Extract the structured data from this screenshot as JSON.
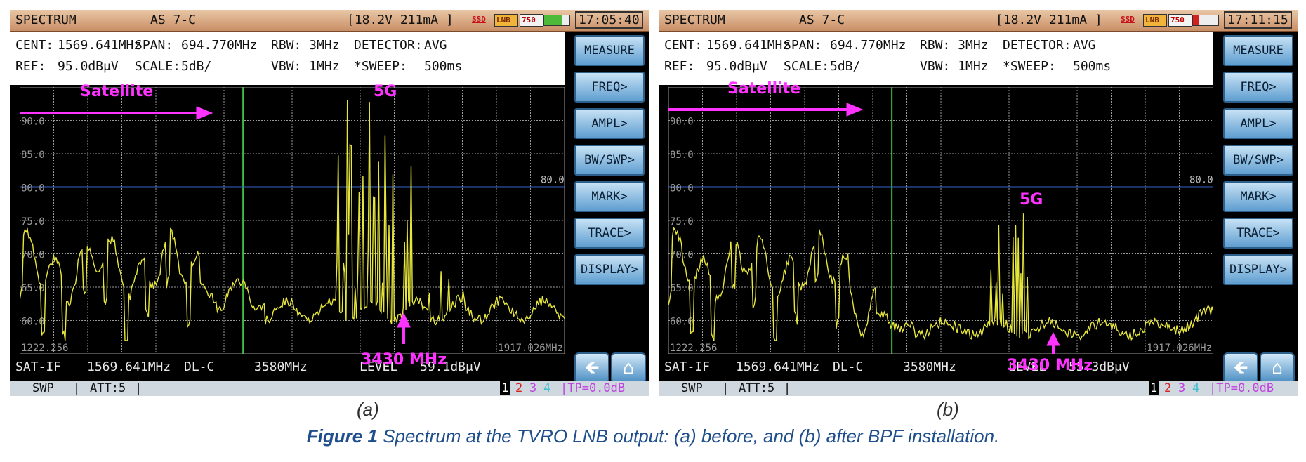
{
  "panels": [
    {
      "header": {
        "title": "SPECTRUM",
        "satellite": "AS 7-C",
        "power": "[18.2V 211mA ]",
        "ssd": "SSD",
        "lnb": "LNB",
        "n750": "750",
        "time": "17:05:40"
      },
      "params": {
        "cent": "CENT:",
        "cent_val": "1569.641MHz",
        "span": "SPAN:",
        "span_val": "694.770MHz",
        "rbw": "RBW: 3MHz",
        "detector": "DETECTOR:",
        "detector_val": "AVG",
        "ref": "REF:",
        "ref_val": "95.0dBμV",
        "scale": "SCALE:",
        "scale_val": "5dB/",
        "vbw": "VBW: 1MHz",
        "sweep": "*SWEEP:",
        "sweep_val": "500ms"
      },
      "y_labels": [
        "90.0",
        "85.0",
        "80.0",
        "75.0",
        "70.0",
        "65.0",
        "60.0"
      ],
      "ref_line_label": "80.0",
      "start_freq": "1222.256",
      "stop_freq": "1917.026MHz",
      "bottom": {
        "mode": "SAT-IF",
        "freq": "1569.641MHz",
        "band": "DL-C",
        "lo": "3580MHz",
        "level": "LEVEL",
        "level_val": "59.1dBμV"
      },
      "status": {
        "swp": "SWP",
        "sep1": "|",
        "att": "ATT:5",
        "sep2": "|",
        "t1": "1",
        "t2": "2",
        "t3": "3",
        "t4": "4",
        "tp": "|TP=0.0dB"
      },
      "annotations": {
        "satellite": "Satellite",
        "fiveg": "5G",
        "freq": "3430 MHz"
      }
    },
    {
      "header": {
        "title": "SPECTRUM",
        "satellite": "AS 7-C",
        "power": "[18.2V 211mA ]",
        "ssd": "SSD",
        "lnb": "LNB",
        "n750": "750",
        "time": "17:11:15"
      },
      "params": {
        "cent": "CENT:",
        "cent_val": "1569.641MHz",
        "span": "SPAN:",
        "span_val": "694.770MHz",
        "rbw": "RBW: 3MHz",
        "detector": "DETECTOR:",
        "detector_val": "AVG",
        "ref": "REF:",
        "ref_val": "95.0dBμV",
        "scale": "SCALE:",
        "scale_val": "5dB/",
        "vbw": "VBW: 1MHz",
        "sweep": "*SWEEP:",
        "sweep_val": "500ms"
      },
      "y_labels": [
        "90.0",
        "85.0",
        "80.0",
        "75.0",
        "70.0",
        "65.0",
        "60.0"
      ],
      "ref_line_label": "80.0",
      "start_freq": "1222.256",
      "stop_freq": "1917.026MHz",
      "bottom": {
        "mode": "SAT-IF",
        "freq": "1569.641MHz",
        "band": "DL-C",
        "lo": "3580MHz",
        "level": "LEVEL",
        "level_val": "55.3dBμV"
      },
      "status": {
        "swp": "SWP",
        "sep1": "|",
        "att": "ATT:5",
        "sep2": "|",
        "t1": "1",
        "t2": "2",
        "t3": "3",
        "t4": "4",
        "tp": "|TP=0.0dB"
      },
      "annotations": {
        "satellite": "Satellite",
        "fiveg": "5G",
        "freq": "3430 MHz"
      }
    }
  ],
  "side_menu": [
    "MEASURE",
    "FREQ>",
    "AMPL>",
    "BW/SWP>",
    "MARK>",
    "TRACE>",
    "DISPLAY>"
  ],
  "nav": {
    "back_icon": "arrow-left-icon",
    "home_icon": "home-icon"
  },
  "captions": {
    "a": "(a)",
    "b": "(b)",
    "figure_label": "Figure 1",
    "figure_text": " Spectrum at the TVRO LNB output: (a) before, and (b) after BPF installation."
  },
  "colors": {
    "trace": "#e6e63c",
    "grid": "#9a9a9a",
    "ref_line": "#3a64c8",
    "marker_line": "#3fbf3f",
    "annotation": "#ff33ff",
    "caption": "#1f4e8c"
  }
}
